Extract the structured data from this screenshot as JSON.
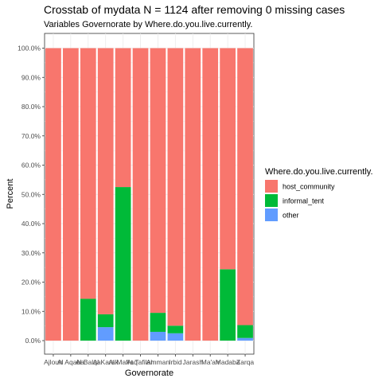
{
  "chart_data": {
    "type": "bar",
    "stacked": true,
    "title": "Crosstab of mydata N = 1124 after removing 0 missing cases",
    "subtitle": "Variables Governorate by Where.do.you.live.currently.",
    "xlabel": "Governorate",
    "ylabel": "Percent",
    "ylim": [
      0,
      100
    ],
    "yticks": [
      "0.0%",
      "10.0%",
      "20.0%",
      "30.0%",
      "40.0%",
      "50.0%",
      "60.0%",
      "70.0%",
      "80.0%",
      "90.0%",
      "100.0%"
    ],
    "grid": true,
    "legend_title": "Where.do.you.live.currently.",
    "legend_position": "right",
    "categories": [
      "Ajloun",
      "Al Aqaba",
      "Al Balqa",
      "Al Karak",
      "Al Mafraq",
      "At Tafilah",
      "Amman",
      "Irbid",
      "Jarash",
      "Ma'an",
      "Madaba",
      "Zarqa"
    ],
    "series": [
      {
        "name": "other",
        "color": "#619CFF",
        "values": [
          0,
          0,
          0,
          4.6,
          0,
          0,
          3.0,
          2.5,
          0,
          0,
          0,
          0.9
        ]
      },
      {
        "name": "informal_tent",
        "color": "#00BA38",
        "values": [
          0,
          0,
          14.3,
          4.4,
          52.5,
          0,
          6.5,
          2.6,
          0,
          0,
          24.4,
          4.4
        ]
      },
      {
        "name": "host_community",
        "color": "#F8766D",
        "values": [
          100,
          100,
          85.7,
          91.0,
          47.5,
          100,
          90.5,
          94.9,
          100,
          100,
          75.6,
          94.7
        ]
      }
    ],
    "legend_order": [
      "host_community",
      "informal_tent",
      "other"
    ]
  }
}
